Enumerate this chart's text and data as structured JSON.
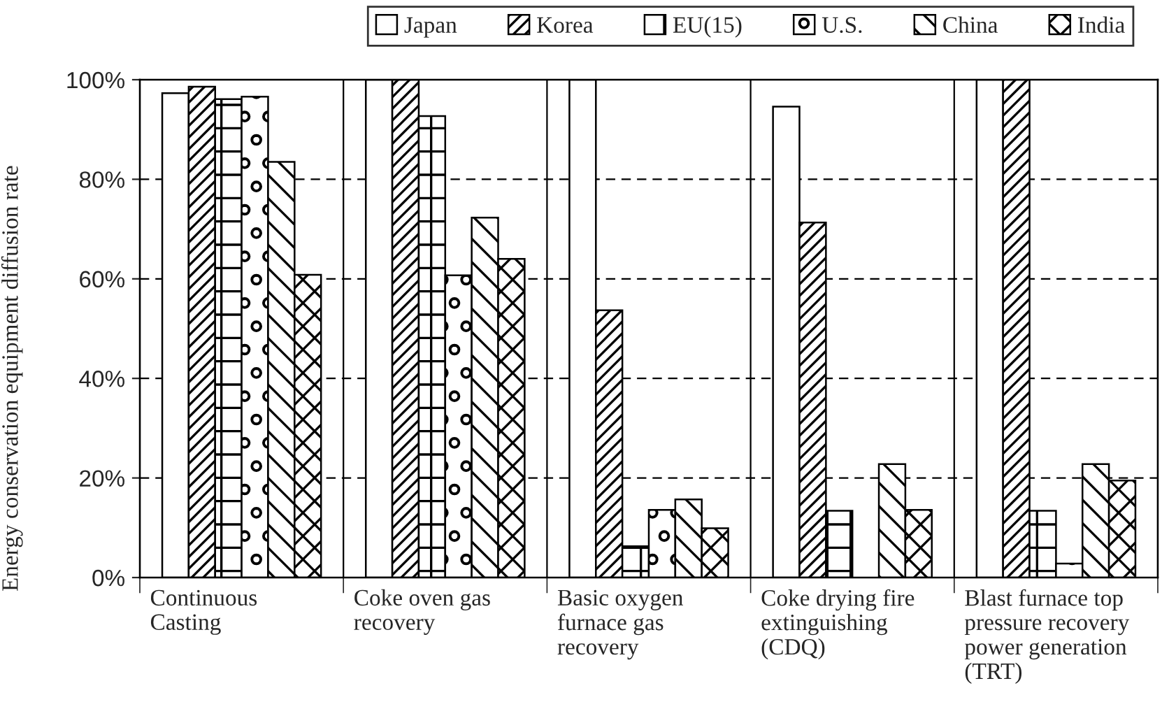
{
  "chart_data": {
    "type": "bar",
    "ylabel": "Energy conservation equipment diffusion rate",
    "categories": [
      "Continuous\nCasting",
      "Coke oven gas\nrecovery",
      "Basic oxygen\nfurnace gas\nrecovery",
      "Coke drying fire\nextinguishing\n(CDQ)",
      "Blast furnace top\npressure recovery\npower generation\n(TRT)"
    ],
    "series": [
      {
        "name": "Japan",
        "color": "#ffffff",
        "values": [
          97.3,
          100,
          100,
          94.6,
          100
        ]
      },
      {
        "name": "Korea",
        "color": "#000000",
        "values": [
          98.6,
          100,
          53.7,
          71.3,
          100
        ]
      },
      {
        "name": "EU(15)",
        "color": "#000000",
        "values": [
          96.1,
          92.7,
          6.3,
          13.4,
          13.4
        ]
      },
      {
        "name": "U.S.",
        "color": "#000000",
        "values": [
          96.6,
          60.7,
          13.6,
          null,
          2.8
        ]
      },
      {
        "name": "China",
        "color": "#000000",
        "values": [
          83.5,
          72.3,
          15.7,
          22.8,
          22.8
        ]
      },
      {
        "name": "India",
        "color": "#000000",
        "values": [
          60.8,
          64.0,
          9.9,
          13.6,
          19.5
        ]
      }
    ],
    "ylim": [
      0,
      100
    ],
    "yticks": [
      {
        "value": 0,
        "label": "0%"
      },
      {
        "value": 20,
        "label": "20%"
      },
      {
        "value": 40,
        "label": "40%"
      },
      {
        "value": 60,
        "label": "60%"
      },
      {
        "value": 80,
        "label": "80%"
      },
      {
        "value": 100,
        "label": "100%"
      }
    ],
    "grid": "y",
    "legend": "top"
  }
}
